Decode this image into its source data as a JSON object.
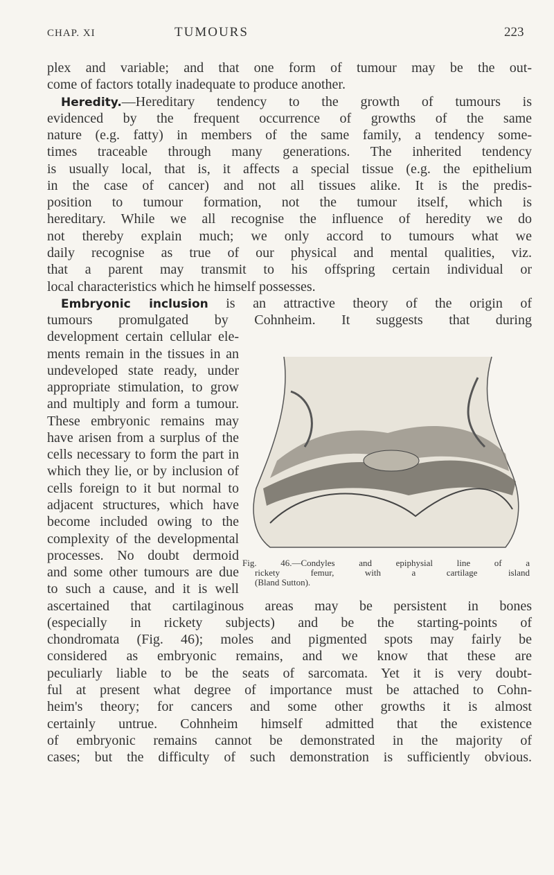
{
  "header": {
    "left": "CHAP. XI",
    "center": "TUMOURS",
    "page": "223"
  },
  "paragraphs": [
    {
      "lines": [
        "plex and variable; and that one form of tumour may be the out-",
        "come of factors totally inadequate to produce another."
      ]
    },
    {
      "heading": "Heredity.",
      "lines": [
        "—Hereditary tendency to the growth of tumours is",
        "evidenced by the frequent occurrence of growths of the same",
        "nature (e.g. fatty) in members of the same family, a tendency some-",
        "times traceable through many generations. The inherited tendency",
        "is usually local, that is, it affects a special tissue (e.g. the epithelium",
        "in the case of cancer) and not all tissues alike. It is the predis-",
        "position to tumour formation, not the tumour itself, which is",
        "hereditary. While we all recognise the influence of heredity we do",
        "not thereby explain much; we only accord to tumours what we",
        "daily recognise as true of our physical and mental qualities, viz.",
        "that a parent may transmit to his offspring certain individual or",
        "local characteristics which he himself possesses."
      ]
    },
    {
      "heading": "Embryonic inclusion",
      "lines": [
        " is an attractive theory of the origin of",
        "tumours promulgated by Cohnheim. It suggests that during",
        "development certain cellular ele-",
        "ments remain in the tissues in an",
        "undeveloped state ready, under",
        "appropriate stimulation, to grow",
        "and multiply and form a tumour.",
        "These embryonic remains may",
        "have arisen from a surplus of the",
        "cells necessary to form the part in",
        "which they lie, or by inclusion of",
        "cells foreign to it but normal to",
        "adjacent structures, which have",
        "become included owing to the",
        "complexity of the developmental",
        "processes. No doubt dermoid",
        "and some other tumours are due",
        "to such a cause, and it is well",
        "ascertained that cartilaginous areas may be persistent in bones",
        "(especially in rickety subjects) and be the starting-points of",
        "chondromata (Fig. 46); moles and pigmented spots may fairly be",
        "considered as embryonic remains, and we know that these are",
        "peculiarly liable to be the seats of sarcomata. Yet it is very doubt-",
        "ful at present what degree of importance must be attached to Cohn-",
        "heim's theory; for cancers and some other growths it is almost",
        "certainly untrue. Cohnheim himself admitted that the existence",
        "of embryonic remains cannot be demonstrated in the majority of",
        "cases; but the difficulty of such demonstration is sufficiently obvious."
      ]
    }
  ],
  "figure": {
    "caption": [
      "Fig. 46.—Condyles and epiphysial line of a",
      "rickety femur, with a cartilage island",
      "(Bland Sutton)."
    ]
  }
}
